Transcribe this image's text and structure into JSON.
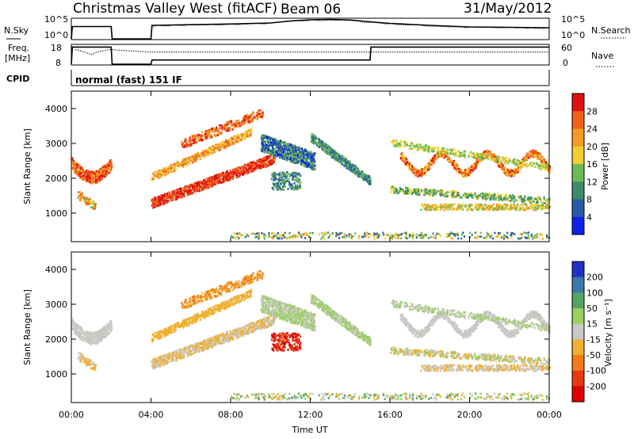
{
  "header": {
    "station": "Christmas Valley West (fitACF)",
    "beam": "Beam 06",
    "date": "31/May/2012"
  },
  "noise_panel": {
    "left_label": "N.Sky",
    "right_label": "N.Search",
    "left_ticks": [
      "10^5",
      "10^0"
    ],
    "right_ticks": [
      "10^5",
      "10^0"
    ]
  },
  "freq_panel": {
    "left_label_1": "Freq.",
    "left_label_2": "[MHz]",
    "right_label": "Nave",
    "left_ticks": [
      "18",
      "8"
    ],
    "right_ticks": [
      "60",
      "0"
    ]
  },
  "cpid": {
    "label": "CPID",
    "value": "normal (fast) 151 IF"
  },
  "axes": {
    "ylabel": "Slant Range [km]",
    "xlabel": "Time UT",
    "y_ticks": [
      "1000",
      "2000",
      "3000",
      "4000"
    ],
    "x_ticks": [
      "00:00",
      "04:00",
      "08:00",
      "12:00",
      "16:00",
      "20:00",
      "00:00"
    ]
  },
  "power_scale": {
    "label": "Power [dB]",
    "ticks": [
      "4",
      "8",
      "12",
      "16",
      "20",
      "24",
      "28"
    ],
    "colors": [
      "#1020e8",
      "#2b5aa8",
      "#3f8a6a",
      "#6cbb55",
      "#f0d030",
      "#f59a25",
      "#f06018",
      "#e01010"
    ]
  },
  "velocity_scale": {
    "label": "Velocity [m s⁻¹]",
    "ticks": [
      "200",
      "100",
      "50",
      "15",
      "-15",
      "-50",
      "-100",
      "-200"
    ],
    "colors": [
      "#2030c8",
      "#3a7aa8",
      "#55a560",
      "#9ad060",
      "#c8c8c4",
      "#f0b030",
      "#f07a18",
      "#e83a10",
      "#e00000"
    ]
  },
  "chart_data": [
    {
      "type": "line",
      "title": "Christmas Valley West (fitACF)",
      "ylabel": "N.Sky",
      "x_unit": "hours UT",
      "series": [
        {
          "name": "N.Sky",
          "x": [
            0,
            0.05,
            2.0,
            2.05,
            4.0,
            4.05,
            8,
            10,
            11,
            12,
            13,
            14,
            15,
            16,
            18,
            20,
            22,
            24
          ],
          "y": [
            0.0,
            0.62,
            0.62,
            0.0,
            0.0,
            0.68,
            0.75,
            0.8,
            0.9,
            0.96,
            0.98,
            0.95,
            0.86,
            0.78,
            0.68,
            0.6,
            0.58,
            0.56
          ]
        }
      ]
    },
    {
      "type": "line",
      "ylabel": "Freq. [MHz]",
      "x_unit": "hours UT",
      "series": [
        {
          "name": "Freq.",
          "x": [
            0,
            0.05,
            2.0,
            2.05,
            4.0,
            4.05,
            15.0,
            15.05,
            24
          ],
          "y": [
            8,
            17,
            17,
            8,
            8,
            10.2,
            10.2,
            17,
            17
          ]
        },
        {
          "name": "Nave",
          "x": [
            0.2,
            0.6,
            1.0,
            1.4,
            1.9,
            4.05,
            24
          ],
          "y": [
            46,
            40,
            30,
            40,
            46,
            38,
            38
          ]
        }
      ]
    },
    {
      "type": "heatmap",
      "ylabel": "Slant Range [km]",
      "xlabel": "Time UT",
      "xlim": [
        0,
        24
      ],
      "ylim": [
        180,
        4500
      ],
      "zlabel": "Power [dB]",
      "zlim": [
        0,
        30
      ]
    },
    {
      "type": "heatmap",
      "ylabel": "Slant Range [km]",
      "xlabel": "Time UT",
      "xlim": [
        0,
        24
      ],
      "ylim": [
        180,
        4500
      ],
      "zlabel": "Velocity",
      "zlim": [
        -250,
        250
      ]
    }
  ]
}
